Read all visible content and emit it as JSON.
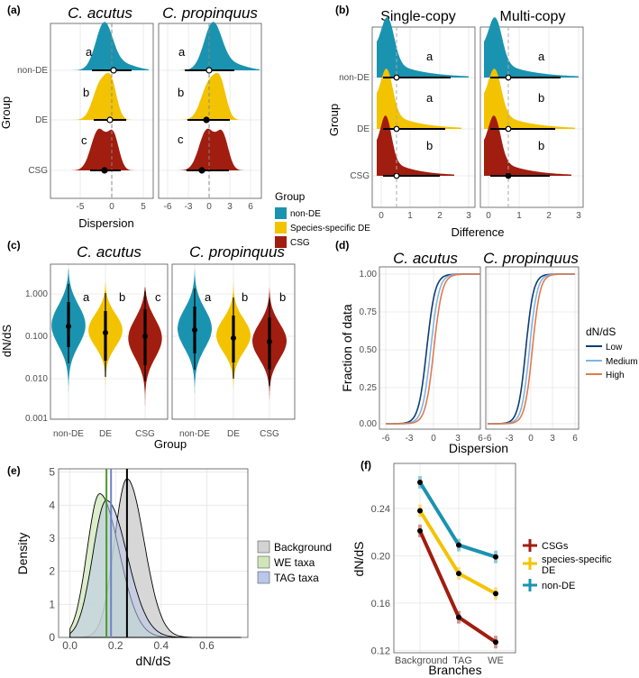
{
  "colors": {
    "nonDE": "#1a93b0",
    "DE": "#f3c300",
    "CSG": "#a11d0f",
    "low": "#0d3e73",
    "medium": "#7fb4e6",
    "high": "#e07a4f",
    "background": "#d3d3d3",
    "we": "#cfe7b8",
    "tag": "#b9c7ea"
  },
  "chart_data": [
    {
      "panel": "(a)",
      "type": "ridgeline",
      "facets": [
        "C. acutus",
        "C. propinquus"
      ],
      "categories": [
        "non-DE",
        "DE",
        "CSG"
      ],
      "xlabel": "Dispersion",
      "ylabel": "Group",
      "xlim_left": [
        -8,
        6
      ],
      "xticks_left": [
        -5,
        0,
        5
      ],
      "xlim_right": [
        -6,
        7
      ],
      "xticks_right": [
        -6,
        -3,
        0,
        3,
        6
      ],
      "letters": [
        "a",
        "b",
        "c"
      ],
      "summary": [
        {
          "group": "non-DE",
          "median": 0.2
        },
        {
          "group": "DE",
          "median": -0.1
        },
        {
          "group": "CSG",
          "median": -1.2
        }
      ]
    },
    {
      "panel": "(b)",
      "type": "ridgeline",
      "facets": [
        "Single-copy",
        "Multi-copy"
      ],
      "categories": [
        "non-DE",
        "DE",
        "CSG"
      ],
      "xlabel": "Difference",
      "ylabel": "Group",
      "xlim": [
        -0.2,
        3.1
      ],
      "xticks": [
        0,
        1,
        2,
        3
      ],
      "letters_single": [
        "a",
        "a",
        "b"
      ],
      "letters_multi": [
        "a",
        "b",
        "b"
      ]
    },
    {
      "panel": "(c)",
      "type": "violin",
      "facets": [
        "C. acutus",
        "C. propinquus"
      ],
      "categories": [
        "non-DE",
        "DE",
        "CSG"
      ],
      "xlabel": "Group",
      "ylabel": "dN/dS",
      "yscale": "log",
      "yticks": [
        "0.001",
        "0.010",
        "0.100",
        "1.000"
      ],
      "medians_acutus": [
        0.15,
        0.11,
        0.09
      ],
      "medians_propinquus": [
        0.12,
        0.09,
        0.07
      ],
      "letters_acutus": [
        "a",
        "b",
        "c"
      ],
      "letters_propinquus": [
        "a",
        "b",
        "b"
      ]
    },
    {
      "panel": "(d)",
      "type": "line",
      "facets": [
        "C. acutus",
        "C. propinquus"
      ],
      "xlabel": "Dispersion",
      "ylabel": "Fraction of data",
      "xlim": [
        -6,
        6
      ],
      "xticks": [
        -6,
        -3,
        0,
        3,
        6
      ],
      "yticks": [
        "0.00",
        "0.25",
        "0.50",
        "0.75",
        "1.00"
      ],
      "series": [
        {
          "name": "Low",
          "center": -0.8
        },
        {
          "name": "Medium",
          "center": -0.3
        },
        {
          "name": "High",
          "center": 0.1
        }
      ]
    },
    {
      "panel": "(e)",
      "type": "area",
      "xlabel": "dN/dS",
      "ylabel": "Density",
      "xlim": [
        -0.05,
        0.78
      ],
      "ylim": [
        0,
        5.1
      ],
      "xticks": [
        0.0,
        0.2,
        0.4,
        0.6
      ],
      "yticks": [
        0,
        1,
        2,
        3,
        4,
        5
      ],
      "series": [
        {
          "name": "Background",
          "peak": 0.25,
          "mean": 0.25
        },
        {
          "name": "WE taxa",
          "peak": 0.13,
          "mean": 0.16
        },
        {
          "name": "TAG taxa",
          "peak": 0.16,
          "mean": 0.18
        }
      ]
    },
    {
      "panel": "(f)",
      "type": "line",
      "xlabel": "Branches",
      "ylabel": "dN/dS",
      "categories": [
        "Background",
        "TAG",
        "WE"
      ],
      "yticks": [
        "0.12",
        "0.16",
        "0.20",
        "0.24"
      ],
      "ylim": [
        0.118,
        0.278
      ],
      "series": [
        {
          "name": "CSGs",
          "values": [
            0.221,
            0.148,
            0.127
          ]
        },
        {
          "name": "species-specific DE",
          "values": [
            0.238,
            0.185,
            0.168
          ]
        },
        {
          "name": "non-DE",
          "values": [
            0.262,
            0.209,
            0.199
          ]
        }
      ]
    }
  ],
  "legend_group": {
    "title": "Group",
    "items": [
      "non-DE",
      "Species-specific DE",
      "CSG"
    ]
  },
  "legend_dnds": {
    "title": "dN/dS",
    "items": [
      "Low",
      "Medium",
      "High"
    ]
  },
  "legend_e": {
    "items": [
      "Background",
      "WE taxa",
      "TAG taxa"
    ]
  },
  "legend_f": {
    "items": [
      "CSGs",
      "species-specific DE",
      "non-DE"
    ]
  }
}
